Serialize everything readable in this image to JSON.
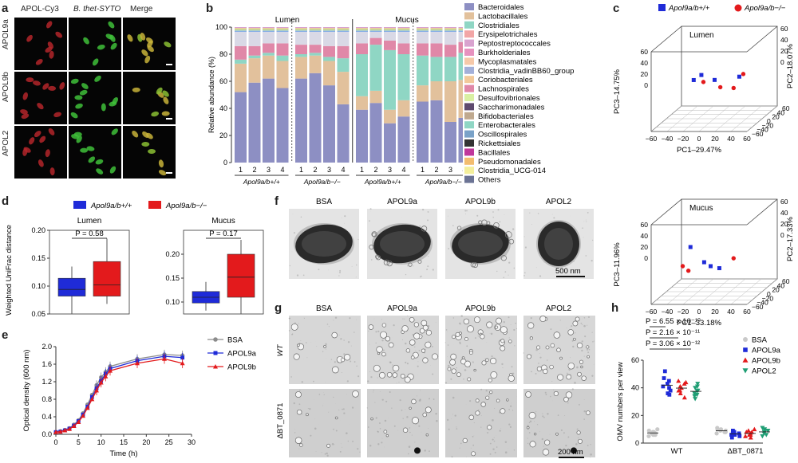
{
  "panels": {
    "a": {
      "letter": "a",
      "col_headers": [
        "APOL-Cy3",
        "B. thet-SYTO",
        "Merge"
      ],
      "row_labels": [
        "APOL9a",
        "APOL9b",
        "APOL2"
      ]
    },
    "b": {
      "letter": "b",
      "ylabel": "Relative abundance (%)",
      "region_labels": [
        "Lumen",
        "Mucus"
      ],
      "group_labels": [
        "Apol9a/b+/+",
        "Apol9a/b−/−",
        "Apol9a/b+/+",
        "Apol9a/b−/−"
      ],
      "sample_ticks": [
        "1",
        "2",
        "3",
        "4",
        "1",
        "2",
        "3",
        "4",
        "1",
        "2",
        "3",
        "4",
        "1",
        "2",
        "3",
        "4"
      ],
      "legend": [
        "Bacteroidales",
        "Lactobacillales",
        "Clostridiales",
        "Erysipelotrichales",
        "Peptostreptococcales",
        "Burkholderiales",
        "Mycoplasmatales",
        "Clostridia_vadinBB60_group",
        "Coriobacteriales",
        "Lachnospirales",
        "Desulfovibrionales",
        "Saccharimonadales",
        "Bifidobacteriales",
        "Enterobacterales",
        "Oscillospirales",
        "Rickettsiales",
        "Bacillales",
        "Pseudomonadales",
        "Clostridia_UCG-014",
        "Others"
      ]
    },
    "c": {
      "letter": "c",
      "legend": [
        "Apol9a/b+/+",
        "Apol9a/b−/−"
      ],
      "lumen": {
        "title": "Lumen",
        "pc1": "PC1–29.47%",
        "pc2": "PC2–18.07%",
        "pc3": "PC3–14.75%"
      },
      "mucus": {
        "title": "Mucus",
        "pc1": "PC1–33.18%",
        "pc2": "PC2–17.33%",
        "pc3": "PC3–11.96%"
      }
    },
    "d": {
      "letter": "d",
      "legend": [
        "Apol9a/b+/+",
        "Apol9a/b−/−"
      ],
      "ylabel": "Weighted UniFrac distance",
      "lumen": {
        "title": "Lumen",
        "p": "P = 0.58"
      },
      "mucus": {
        "title": "Mucus",
        "p": "P = 0.17"
      }
    },
    "e": {
      "letter": "e",
      "ylabel": "Optical density (600 nm)",
      "xlabel": "Time (h)",
      "legend": [
        "BSA",
        "APOL9a",
        "APOL9b"
      ]
    },
    "f": {
      "letter": "f",
      "labels": [
        "BSA",
        "APOL9a",
        "APOL9b",
        "APOL2"
      ],
      "scale": "500 nm"
    },
    "g": {
      "letter": "g",
      "labels": [
        "BSA",
        "APOL9a",
        "APOL9b",
        "APOL2"
      ],
      "rows": [
        "WT",
        "ΔBT_0871"
      ],
      "scale": "200 nm"
    },
    "h": {
      "letter": "h",
      "ylabel": "OMV numbers per view",
      "pvalues": [
        "P = 6.55 × 10⁻¹⁰",
        "P = 2.16 × 10⁻¹¹",
        "P = 3.06 × 10⁻¹²"
      ],
      "legend": [
        "BSA",
        "APOL9a",
        "APOL9b",
        "APOL2"
      ],
      "groups": [
        "WT",
        "ΔBT_0871"
      ]
    }
  },
  "colors": {
    "blue": "#1f2bd8",
    "red": "#e31a1c",
    "grey": "#8c8c8c",
    "green": "#1f9e74"
  },
  "chart_data": [
    {
      "type": "bar",
      "id": "b",
      "ylabel": "Relative abundance (%)",
      "ylim": [
        0,
        100
      ],
      "categories": [
        "1",
        "2",
        "3",
        "4",
        "1",
        "2",
        "3",
        "4",
        "1",
        "2",
        "3",
        "4",
        "1",
        "2",
        "3",
        "4"
      ],
      "series": [
        {
          "name": "Bacteroidales",
          "color": "#8d8fc3",
          "values": [
            52,
            59,
            62,
            55,
            62,
            66,
            57,
            43,
            39,
            44,
            29,
            34,
            45,
            46,
            30,
            33
          ]
        },
        {
          "name": "Lactobacillales",
          "color": "#e2c19c",
          "values": [
            21,
            18,
            17,
            20,
            16,
            13,
            18,
            24,
            10,
            9,
            10,
            12,
            12,
            14,
            30,
            28
          ]
        },
        {
          "name": "Clostridiales",
          "color": "#8fd6c4",
          "values": [
            3,
            2,
            2,
            4,
            2,
            2,
            3,
            10,
            31,
            34,
            44,
            34,
            22,
            18,
            18,
            20
          ]
        },
        {
          "name": "Lachnospirales",
          "color": "#e088a8",
          "values": [
            10,
            7,
            7,
            9,
            7,
            6,
            8,
            9,
            8,
            5,
            7,
            8,
            9,
            10,
            9,
            8
          ]
        },
        {
          "name": "Others",
          "color": "#d9d9e6",
          "values": [
            14,
            14,
            12,
            12,
            13,
            13,
            14,
            14,
            12,
            8,
            10,
            12,
            12,
            12,
            13,
            11
          ]
        }
      ]
    },
    {
      "type": "scatter",
      "id": "c-lumen",
      "series": [
        {
          "name": "Apol9a/b+/+",
          "points": [
            [
              -20,
              10,
              20
            ],
            [
              -10,
              8,
              30
            ],
            [
              10,
              -10,
              25
            ],
            [
              40,
              -5,
              30
            ]
          ]
        },
        {
          "name": "Apol9a/b−/−",
          "points": [
            [
              -5,
              -5,
              20
            ],
            [
              20,
              -25,
              15
            ],
            [
              30,
              10,
              5
            ],
            [
              45,
              -5,
              35
            ]
          ]
        }
      ]
    },
    {
      "type": "scatter",
      "id": "c-mucus",
      "series": [
        {
          "name": "Apol9a/b+/+",
          "points": [
            [
              -25,
              15,
              30
            ],
            [
              -5,
              0,
              5
            ],
            [
              5,
              -10,
              0
            ],
            [
              15,
              -5,
              -5
            ]
          ]
        },
        {
          "name": "Apol9a/b−/−",
          "points": [
            [
              -30,
              -10,
              0
            ],
            [
              -20,
              -25,
              -5
            ],
            [
              30,
              10,
              10
            ]
          ]
        }
      ]
    },
    {
      "type": "box",
      "id": "d-lumen",
      "ylim": [
        0.05,
        0.2
      ],
      "series": [
        {
          "name": "Apol9a/b+/+",
          "min": 0.04,
          "q1": 0.082,
          "median": 0.094,
          "q3": 0.114,
          "max": 0.135
        },
        {
          "name": "Apol9a/b−/−",
          "min": 0.068,
          "q1": 0.082,
          "median": 0.102,
          "q3": 0.144,
          "max": 0.185
        }
      ]
    },
    {
      "type": "box",
      "id": "d-mucus",
      "ylim": [
        0.075,
        0.25
      ],
      "series": [
        {
          "name": "Apol9a/b+/+",
          "min": 0.082,
          "q1": 0.098,
          "median": 0.11,
          "q3": 0.122,
          "max": 0.142
        },
        {
          "name": "Apol9a/b−/−",
          "min": 0.07,
          "q1": 0.11,
          "median": 0.152,
          "q3": 0.2,
          "max": 0.23
        }
      ]
    },
    {
      "type": "line",
      "id": "e",
      "xlabel": "Time (h)",
      "ylabel": "Optical density (600 nm)",
      "xlim": [
        0,
        30
      ],
      "ylim": [
        0,
        2.0
      ],
      "x": [
        0,
        1,
        2,
        3,
        4,
        5,
        6,
        7,
        8,
        9,
        10,
        11,
        12,
        18,
        24,
        28
      ],
      "series": [
        {
          "name": "BSA",
          "color": "#8c8c8c",
          "values": [
            0.05,
            0.07,
            0.1,
            0.14,
            0.22,
            0.32,
            0.48,
            0.68,
            0.9,
            1.12,
            1.3,
            1.42,
            1.55,
            1.72,
            1.82,
            1.8
          ]
        },
        {
          "name": "APOL9a",
          "color": "#1f2bd8",
          "values": [
            0.05,
            0.06,
            0.09,
            0.13,
            0.2,
            0.3,
            0.45,
            0.63,
            0.85,
            1.05,
            1.22,
            1.38,
            1.5,
            1.68,
            1.78,
            1.75
          ]
        },
        {
          "name": "APOL9b",
          "color": "#e31a1c",
          "values": [
            0.05,
            0.06,
            0.09,
            0.12,
            0.19,
            0.28,
            0.42,
            0.6,
            0.8,
            1.0,
            1.18,
            1.32,
            1.45,
            1.62,
            1.72,
            1.62
          ]
        }
      ]
    },
    {
      "type": "scatter",
      "id": "h",
      "ylabel": "OMV numbers per view",
      "ylim": [
        0,
        60
      ],
      "categories": [
        "WT",
        "ΔBT_0871"
      ],
      "series": [
        {
          "name": "BSA",
          "color": "#c9c9c9",
          "WT": [
            5,
            7,
            8,
            6,
            9,
            6,
            7,
            8,
            10
          ],
          "KO": [
            8,
            9,
            10,
            7,
            8,
            9,
            10,
            11,
            8
          ]
        },
        {
          "name": "APOL9a",
          "color": "#1f2bd8",
          "WT": [
            52,
            47,
            45,
            40,
            36,
            43,
            38,
            35,
            41
          ],
          "KO": [
            4,
            6,
            7,
            8,
            9,
            6,
            5,
            7,
            8
          ]
        },
        {
          "name": "APOL9b",
          "color": "#e31a1c",
          "WT": [
            45,
            41,
            38,
            43,
            36,
            33,
            40,
            44,
            38
          ],
          "KO": [
            4,
            5,
            6,
            8,
            7,
            9,
            6,
            8,
            10
          ]
        },
        {
          "name": "APOL2",
          "color": "#1f9e74",
          "WT": [
            43,
            40,
            38,
            36,
            34,
            41,
            35,
            38,
            32
          ],
          "KO": [
            5,
            7,
            8,
            9,
            10,
            6,
            8,
            9,
            11
          ]
        }
      ]
    }
  ]
}
